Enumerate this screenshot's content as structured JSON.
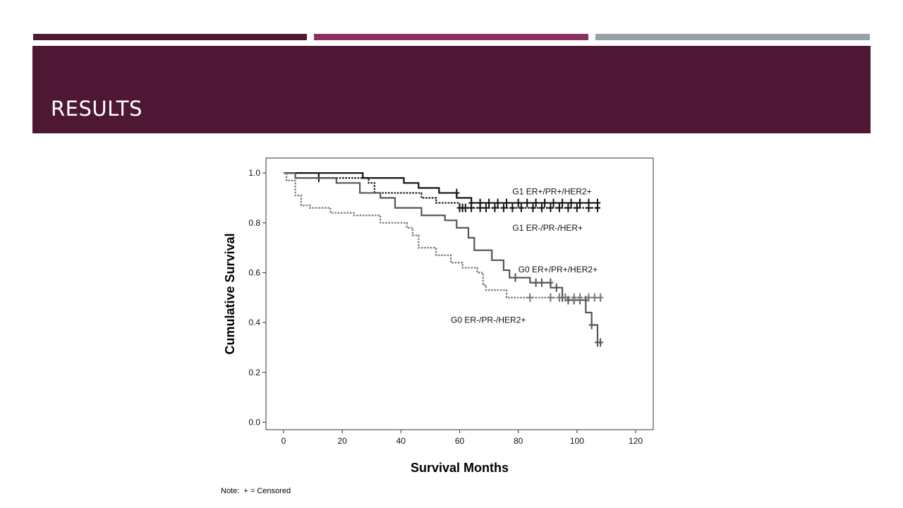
{
  "slide": {
    "title": "RESULTS",
    "note": "Note:  + = Censored"
  },
  "colors": {
    "band": "#4e1734",
    "bar_dark": "#4e1734",
    "bar_mid": "#8e2f61",
    "bar_grey": "#97a1aa"
  },
  "chart_data": {
    "type": "line",
    "xlabel": "Survival Months",
    "ylabel": "Cumulative Survival",
    "xlim": [
      -6,
      126
    ],
    "ylim": [
      -0.03,
      1.06
    ],
    "xticks": [
      0,
      20,
      40,
      60,
      80,
      100,
      120
    ],
    "yticks": [
      0.0,
      0.2,
      0.4,
      0.6,
      0.8,
      1.0
    ],
    "ytick_labels": [
      "0.0",
      "0.2",
      "0.4",
      "0.6",
      "0.8",
      "1.0"
    ],
    "grid": false,
    "series": [
      {
        "name": "G1 ER+/PR+/HER2+",
        "color": "#111111",
        "style": "solid",
        "steps": [
          [
            0,
            1.0
          ],
          [
            27,
            0.98
          ],
          [
            41,
            0.96
          ],
          [
            46,
            0.94
          ],
          [
            53,
            0.92
          ],
          [
            59,
            0.9
          ],
          [
            64,
            0.88
          ],
          [
            108,
            0.88
          ]
        ],
        "censored": [
          [
            59,
            0.92
          ],
          [
            64,
            0.88
          ],
          [
            67,
            0.88
          ],
          [
            70,
            0.88
          ],
          [
            73,
            0.88
          ],
          [
            76,
            0.88
          ],
          [
            80,
            0.88
          ],
          [
            83,
            0.88
          ],
          [
            86,
            0.88
          ],
          [
            89,
            0.88
          ],
          [
            92,
            0.88
          ],
          [
            95,
            0.88
          ],
          [
            98,
            0.88
          ],
          [
            101,
            0.88
          ],
          [
            104,
            0.88
          ],
          [
            107,
            0.88
          ]
        ],
        "label_x": 78,
        "label_y": 0.926
      },
      {
        "name": "G1 ER-/PR-/HER+",
        "color": "#111111",
        "style": "dotted",
        "steps": [
          [
            0,
            1.0
          ],
          [
            12,
            0.98
          ],
          [
            29,
            0.96
          ],
          [
            31,
            0.92
          ],
          [
            47,
            0.9
          ],
          [
            52,
            0.88
          ],
          [
            60,
            0.86
          ],
          [
            108,
            0.86
          ]
        ],
        "censored": [
          [
            12,
            0.98
          ],
          [
            60,
            0.86
          ],
          [
            61,
            0.86
          ],
          [
            62,
            0.86
          ],
          [
            64,
            0.86
          ],
          [
            67,
            0.86
          ],
          [
            69,
            0.86
          ],
          [
            72,
            0.86
          ],
          [
            75,
            0.86
          ],
          [
            78,
            0.86
          ],
          [
            81,
            0.86
          ],
          [
            85,
            0.86
          ],
          [
            88,
            0.86
          ],
          [
            91,
            0.86
          ],
          [
            94,
            0.86
          ],
          [
            97,
            0.86
          ],
          [
            100,
            0.86
          ],
          [
            104,
            0.86
          ],
          [
            107,
            0.86
          ]
        ],
        "label_x": 78,
        "label_y": 0.78
      },
      {
        "name": "G0 ER+/PR+/HER2+",
        "color": "#555555",
        "style": "solid",
        "steps": [
          [
            0,
            1.0
          ],
          [
            4,
            0.98
          ],
          [
            18,
            0.96
          ],
          [
            26,
            0.92
          ],
          [
            33,
            0.9
          ],
          [
            38,
            0.86
          ],
          [
            47,
            0.83
          ],
          [
            55,
            0.81
          ],
          [
            59,
            0.78
          ],
          [
            63,
            0.74
          ],
          [
            65,
            0.69
          ],
          [
            71,
            0.65
          ],
          [
            75,
            0.61
          ],
          [
            77,
            0.58
          ],
          [
            84,
            0.56
          ],
          [
            91,
            0.54
          ],
          [
            95,
            0.5
          ],
          [
            97,
            0.49
          ],
          [
            103,
            0.44
          ],
          [
            105,
            0.39
          ],
          [
            107,
            0.32
          ],
          [
            108,
            0.32
          ]
        ],
        "censored": [
          [
            79,
            0.58
          ],
          [
            86,
            0.56
          ],
          [
            88,
            0.56
          ],
          [
            91,
            0.56
          ],
          [
            93,
            0.54
          ],
          [
            95,
            0.5
          ],
          [
            97,
            0.49
          ],
          [
            99,
            0.49
          ],
          [
            101,
            0.49
          ],
          [
            103,
            0.49
          ],
          [
            105,
            0.39
          ],
          [
            107,
            0.32
          ],
          [
            108,
            0.32
          ]
        ],
        "label_x": 80,
        "label_y": 0.612
      },
      {
        "name": "G0 ER-/PR-/HER2+",
        "color": "#777777",
        "style": "dotted",
        "steps": [
          [
            0,
            1.0
          ],
          [
            1,
            0.97
          ],
          [
            4,
            0.91
          ],
          [
            6,
            0.87
          ],
          [
            9,
            0.86
          ],
          [
            16,
            0.84
          ],
          [
            24,
            0.83
          ],
          [
            33,
            0.8
          ],
          [
            37,
            0.8
          ],
          [
            42,
            0.78
          ],
          [
            44,
            0.75
          ],
          [
            46,
            0.7
          ],
          [
            52,
            0.67
          ],
          [
            57,
            0.64
          ],
          [
            61,
            0.62
          ],
          [
            66,
            0.6
          ],
          [
            68,
            0.55
          ],
          [
            69,
            0.53
          ],
          [
            76,
            0.5
          ],
          [
            108,
            0.5
          ]
        ],
        "censored": [
          [
            84,
            0.5
          ],
          [
            91,
            0.5
          ],
          [
            94,
            0.5
          ],
          [
            96,
            0.5
          ],
          [
            99,
            0.5
          ],
          [
            101,
            0.5
          ],
          [
            104,
            0.5
          ],
          [
            106,
            0.5
          ],
          [
            108,
            0.5
          ]
        ],
        "label_x": 57,
        "label_y": 0.41
      }
    ]
  }
}
